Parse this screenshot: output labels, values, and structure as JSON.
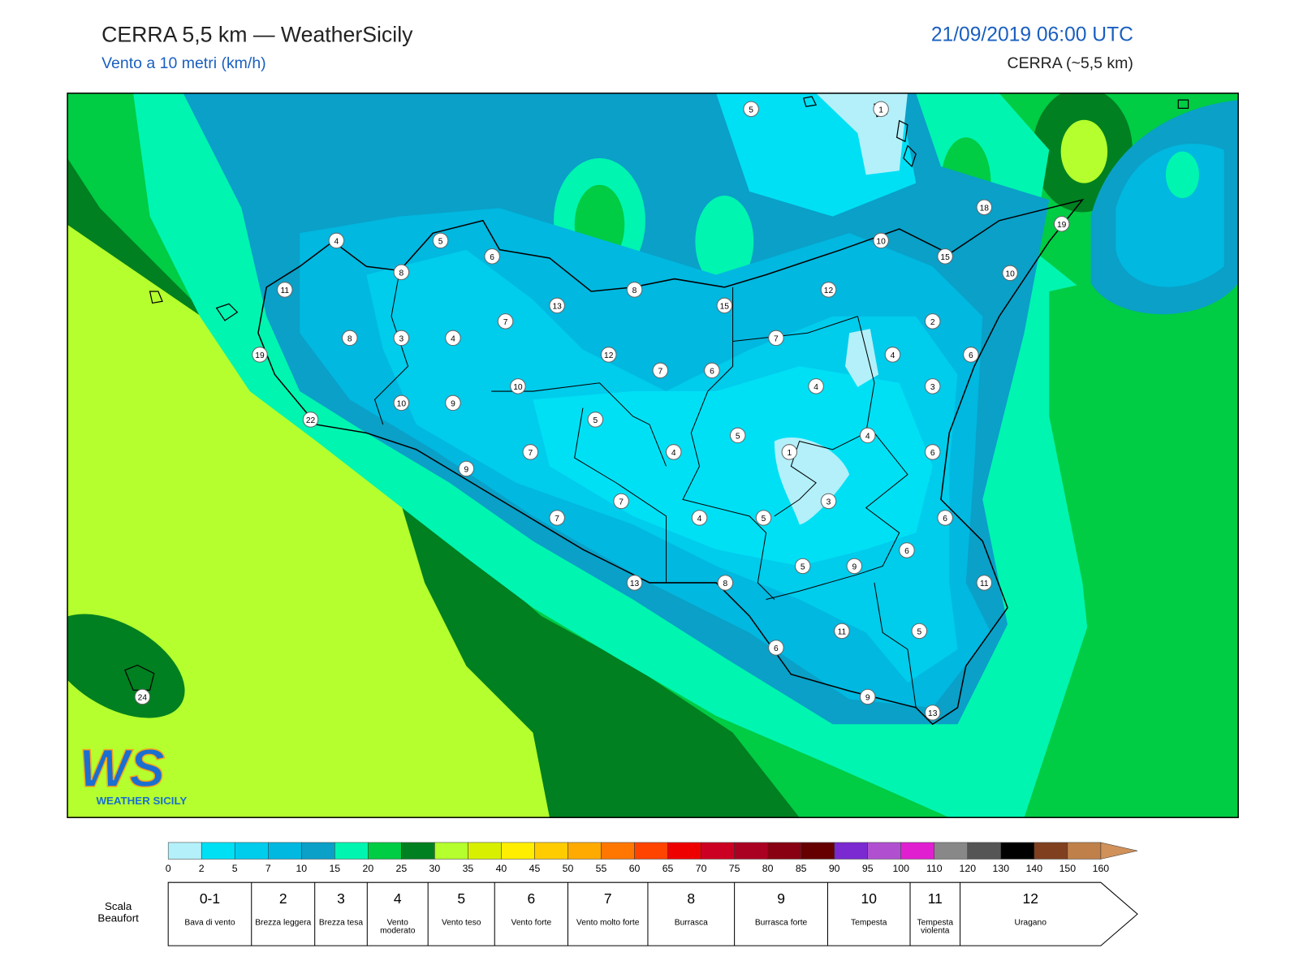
{
  "header": {
    "title": "CERRA 5,5 km — WeatherSicily",
    "subtitle": "Vento a 10 metri (km/h)",
    "datetime": "21/09/2019 06:00 UTC",
    "model": "CERRA (~5,5 km)"
  },
  "map": {
    "stations": [
      5,
      1,
      4,
      5,
      6,
      8,
      11,
      18,
      19,
      10,
      15,
      10,
      8,
      13,
      15,
      12,
      7,
      8,
      3,
      4,
      19,
      12,
      7,
      2,
      4,
      6,
      7,
      6,
      10,
      4,
      3,
      10,
      9,
      22,
      5,
      5,
      4,
      7,
      4,
      1,
      6,
      9,
      7,
      3,
      7,
      4,
      5,
      6,
      6,
      5,
      9,
      13,
      8,
      11,
      6,
      11,
      5,
      9,
      13,
      24
    ]
  },
  "logo": {
    "mark": "WS",
    "text": "WEATHER SICILY"
  },
  "colorbar": {
    "ticks": [
      0,
      2,
      5,
      7,
      10,
      15,
      20,
      25,
      30,
      35,
      40,
      45,
      50,
      55,
      60,
      65,
      70,
      75,
      80,
      85,
      90,
      95,
      100,
      110,
      120,
      130,
      140,
      150,
      160
    ],
    "colors": [
      "#b3f0fa",
      "#00e0f5",
      "#00ccec",
      "#00b8e0",
      "#0aa0c8",
      "#00f5b0",
      "#00cc44",
      "#008020",
      "#b4ff2d",
      "#d8f000",
      "#ffee00",
      "#ffcc00",
      "#ffaa00",
      "#ff7700",
      "#ff4400",
      "#ee0000",
      "#cc0022",
      "#aa0022",
      "#880011",
      "#660000",
      "#7a2ad0",
      "#b050d0",
      "#e020d0",
      "#888888",
      "#555555",
      "#000000",
      "#804020",
      "#c0804a",
      "#d0915a"
    ]
  },
  "beaufort": {
    "title": "Scala Beaufort",
    "classes": [
      {
        "force": "0-1",
        "label": "Bava di vento"
      },
      {
        "force": "2",
        "label": "Brezza leggera"
      },
      {
        "force": "3",
        "label": "Brezza tesa"
      },
      {
        "force": "4",
        "label": "Vento moderato"
      },
      {
        "force": "5",
        "label": "Vento teso"
      },
      {
        "force": "6",
        "label": "Vento forte"
      },
      {
        "force": "7",
        "label": "Vento molto forte"
      },
      {
        "force": "8",
        "label": "Burrasca"
      },
      {
        "force": "9",
        "label": "Burrasca forte"
      },
      {
        "force": "10",
        "label": "Tempesta"
      },
      {
        "force": "11",
        "label": "Tempesta violenta"
      },
      {
        "force": "12",
        "label": "Uragano"
      }
    ]
  }
}
